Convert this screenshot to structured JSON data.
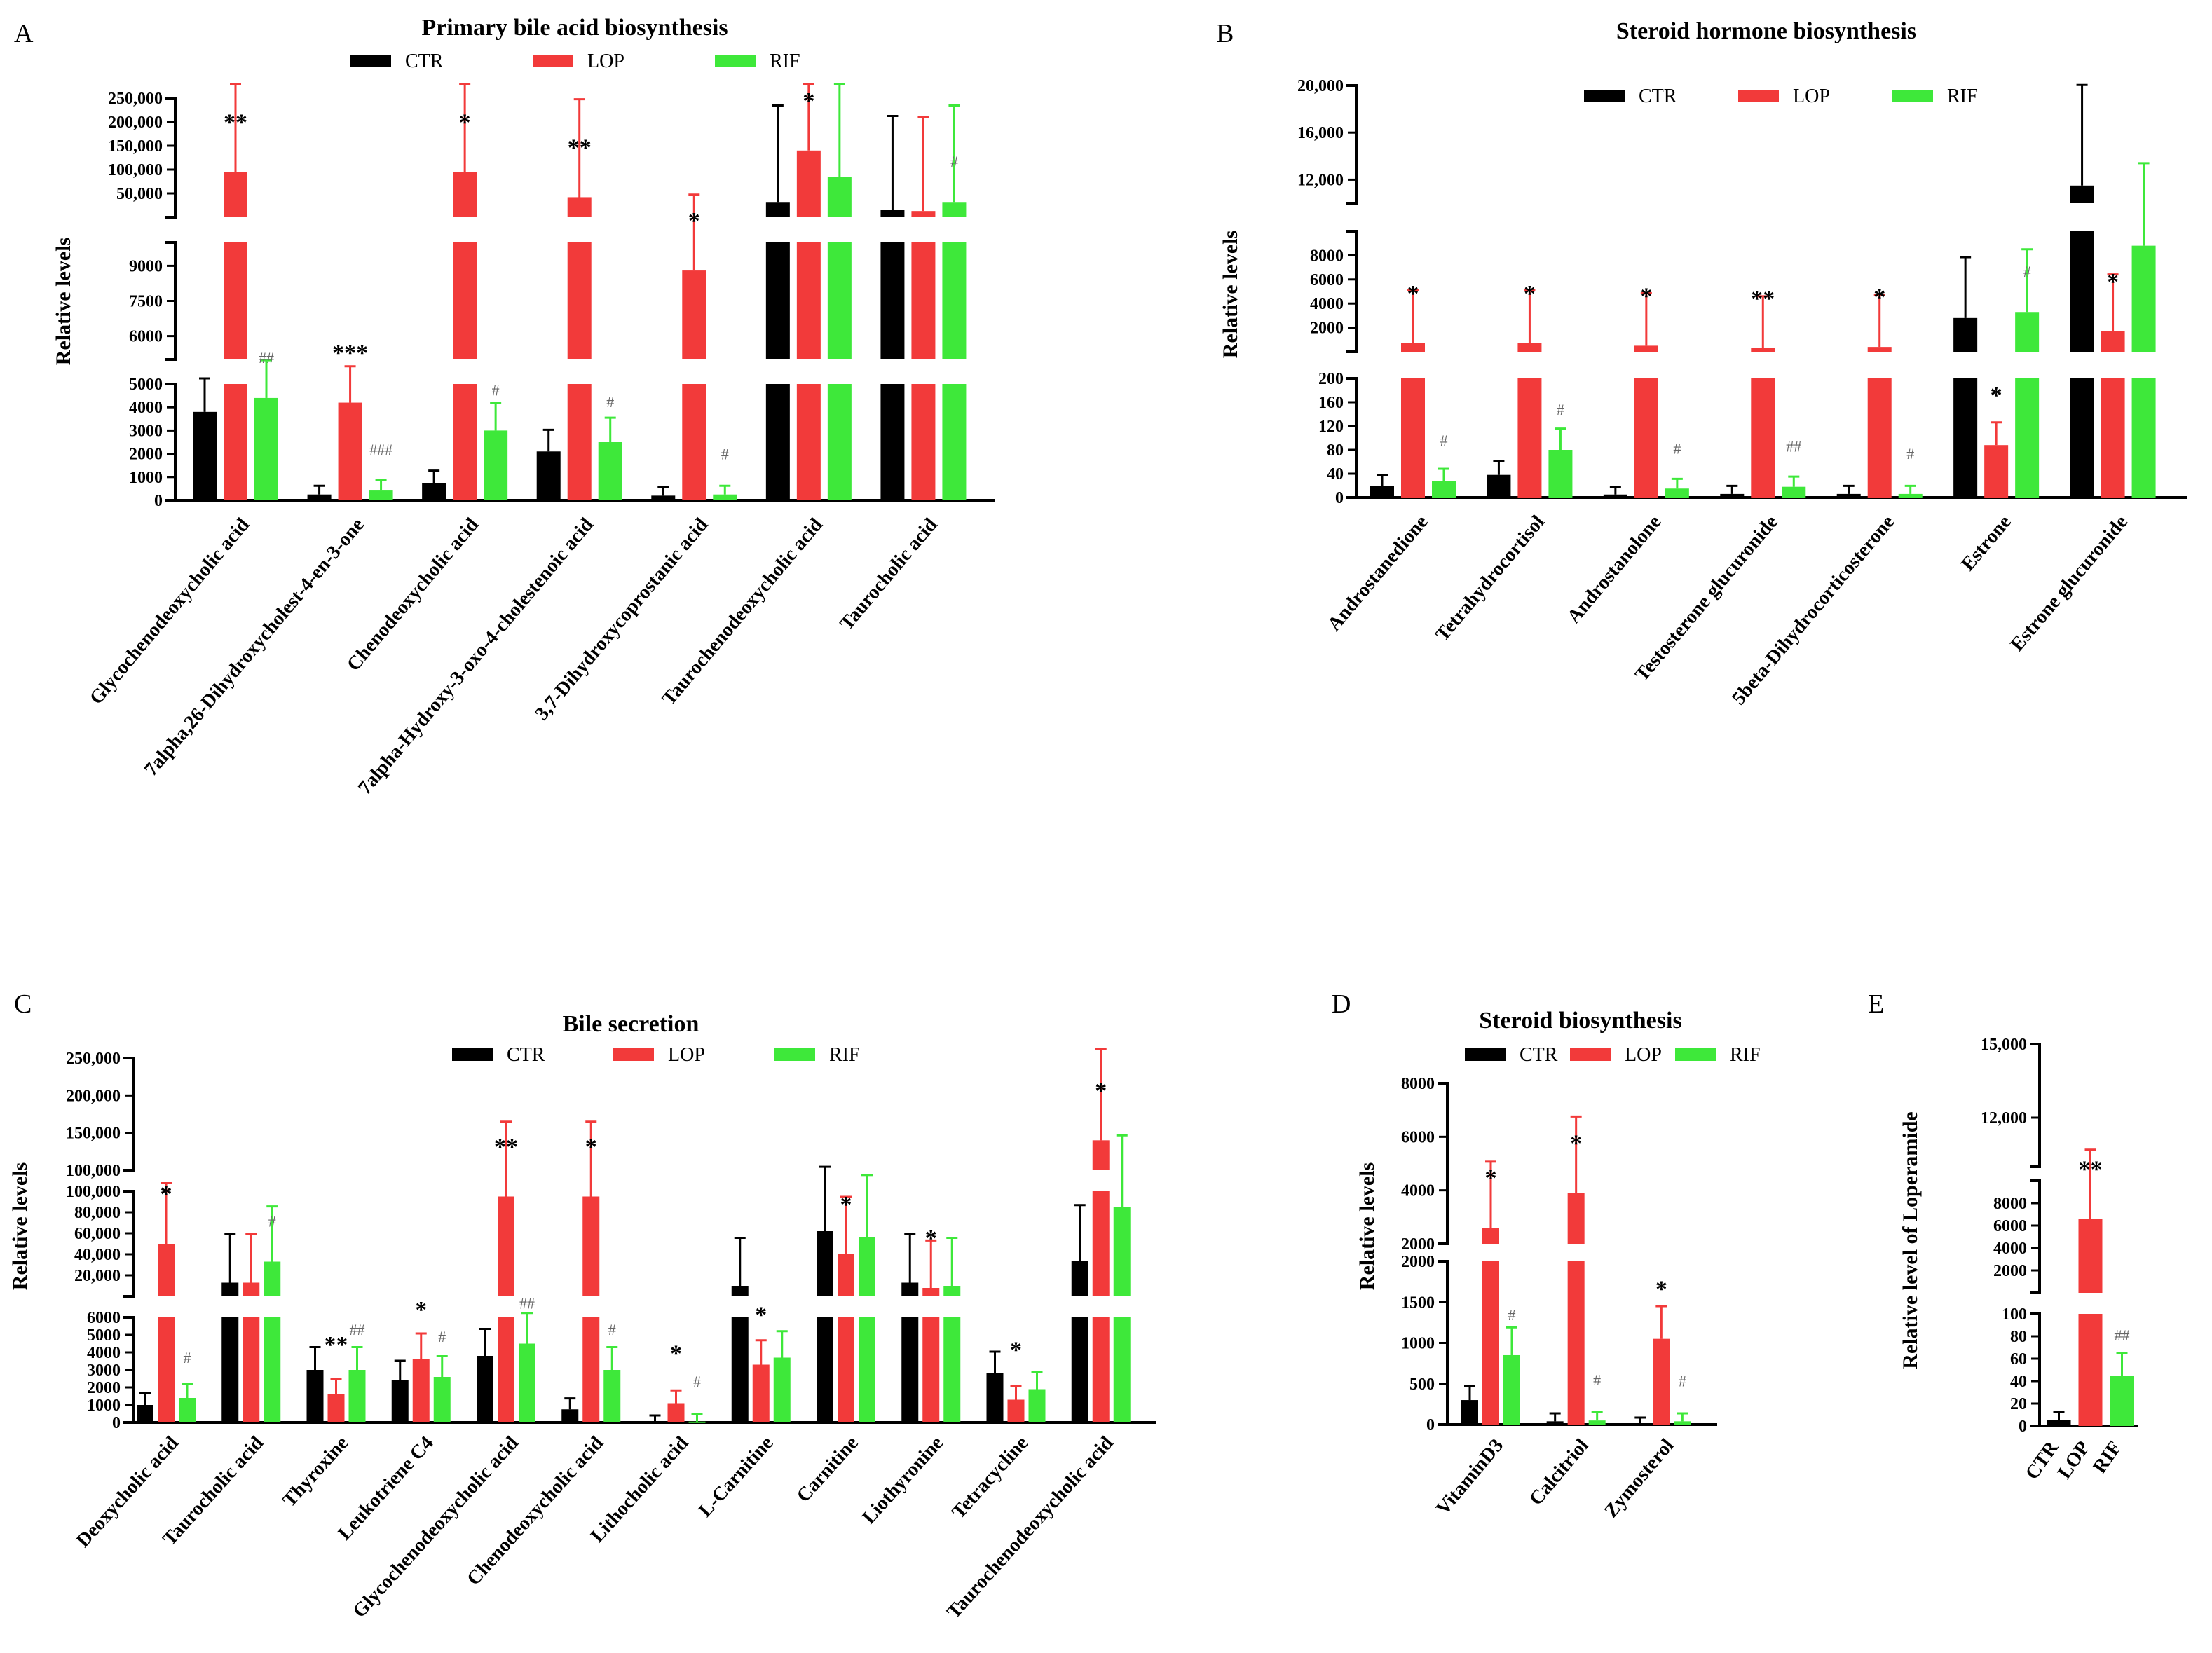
{
  "colors": {
    "CTR": "#000000",
    "LOP": "#f23a3a",
    "RIF": "#3ee83a"
  },
  "chart_data": [
    {
      "id": "A",
      "panel_label": "A",
      "type": "bar",
      "title": "Primary bile acid biosynthesis",
      "ylabel": "Relative levels",
      "legend": [
        "CTR",
        "LOP",
        "RIF"
      ],
      "y_ticks": {
        "top": [
          "250,000",
          "200,000",
          "150,000",
          "100,000",
          "50,000"
        ],
        "mid": [
          "9000",
          "7500",
          "6000"
        ],
        "bottom": [
          "5000",
          "4000",
          "3000",
          "2000",
          "1000",
          "0"
        ]
      },
      "categories": [
        "Glycochenodeoxycholic acid",
        "7alpha,26-Dihydroxycholest-4-en-3-one",
        "Chenodeoxycholic acid",
        "7alpha-Hydroxy-3-oxo-4-cholestenoic acid",
        "3,7-Dihydroxycoprostanic acid",
        "Taurochenodeoxycholic acid",
        "Taurocholic acid"
      ],
      "series": [
        {
          "name": "CTR",
          "values": [
            3800,
            250,
            750,
            2100,
            200,
            32000,
            15000
          ]
        },
        {
          "name": "LOP",
          "values": [
            95000,
            4200,
            95000,
            42000,
            8800,
            140000,
            13000
          ]
        },
        {
          "name": "RIF",
          "values": [
            4400,
            450,
            3000,
            2500,
            250,
            85000,
            32000
          ]
        }
      ],
      "significance": [
        "**",
        "***",
        "*",
        "**",
        "*",
        "*",
        ""
      ],
      "hash": [
        "##",
        "###",
        "#",
        "#",
        "#",
        "",
        "#"
      ]
    },
    {
      "id": "B",
      "panel_label": "B",
      "type": "bar",
      "title": "Steroid hormone biosynthesis",
      "ylabel": "Relative levels",
      "legend": [
        "CTR",
        "LOP",
        "RIF"
      ],
      "y_ticks": {
        "top": [
          "20,000",
          "16,000",
          "12,000"
        ],
        "mid": [
          "8000",
          "6000",
          "4000",
          "2000"
        ],
        "bottom": [
          "200",
          "160",
          "120",
          "80",
          "40",
          "0"
        ]
      },
      "categories": [
        "Androstanedione",
        "Tetrahydrocortisol",
        "Androstanolone",
        "Testosterone glucuronide",
        "5beta-Dihydrocorticosterone",
        "Estrone",
        "Estrone glucuronide"
      ],
      "series": [
        {
          "name": "CTR",
          "values": [
            20,
            38,
            5,
            6,
            6,
            2800,
            11500
          ]
        },
        {
          "name": "LOP",
          "values": [
            700,
            700,
            500,
            300,
            400,
            88,
            1700
          ]
        },
        {
          "name": "RIF",
          "values": [
            28,
            80,
            15,
            18,
            6,
            3300,
            8800
          ]
        }
      ],
      "significance": [
        "*",
        "*",
        "*",
        "**",
        "*",
        "*",
        "*"
      ],
      "hash": [
        "#",
        "#",
        "#",
        "##",
        "#",
        "#",
        ""
      ]
    },
    {
      "id": "C",
      "panel_label": "C",
      "type": "bar",
      "title": "Bile secretion",
      "ylabel": "Relative levels",
      "legend": [
        "CTR",
        "LOP",
        "RIF"
      ],
      "y_ticks": {
        "top": [
          "250,000",
          "200,000",
          "150,000",
          "100,000"
        ],
        "mid": [
          "100,000",
          "80,000",
          "60,000",
          "40,000",
          "20,000"
        ],
        "bottom": [
          "6000",
          "5000",
          "4000",
          "3000",
          "2000",
          "1000",
          "0"
        ]
      },
      "categories": [
        "Deoxycholic acid",
        "Taurocholic acid",
        "Thyroxine",
        "Leukotriene C4",
        "Glycochenodeoxycholic acid",
        "Chenodeoxycholic acid",
        "Lithocholic acid",
        "L-Carnitine",
        "Carnitine",
        "Liothyronine",
        "Tetracycline",
        "Taurochenodeoxycholic acid"
      ],
      "series": [
        {
          "name": "CTR",
          "values": [
            1000,
            13000,
            3000,
            2400,
            3800,
            750,
            0,
            10000,
            62000,
            13000,
            2800,
            34000
          ]
        },
        {
          "name": "LOP",
          "values": [
            50000,
            13000,
            1600,
            3600,
            95000,
            95000,
            1100,
            3300,
            40000,
            8000,
            1300,
            140000
          ]
        },
        {
          "name": "RIF",
          "values": [
            1400,
            33000,
            3000,
            2600,
            4500,
            3000,
            50,
            3700,
            56000,
            10000,
            1900,
            85000
          ]
        }
      ],
      "significance": [
        "*",
        "",
        "**",
        "*",
        "**",
        "*",
        "*",
        "*",
        "*",
        "*",
        "*",
        "*"
      ],
      "hash": [
        "#",
        "#",
        "##",
        "#",
        "##",
        "#",
        "#",
        "",
        "",
        "",
        "",
        ""
      ]
    },
    {
      "id": "D",
      "panel_label": "D",
      "type": "bar",
      "title": "Steroid biosynthesis",
      "ylabel": "Relative levels",
      "legend": [
        "CTR",
        "LOP",
        "RIF"
      ],
      "y_ticks": {
        "top": [
          "8000",
          "6000",
          "4000",
          "2000"
        ],
        "bottom": [
          "2000",
          "1500",
          "1000",
          "500",
          "0"
        ]
      },
      "categories": [
        "VitaminD3",
        "Calcitriol",
        "Zymosterol"
      ],
      "series": [
        {
          "name": "CTR",
          "values": [
            300,
            40,
            0
          ]
        },
        {
          "name": "LOP",
          "values": [
            2600,
            3900,
            1050
          ]
        },
        {
          "name": "RIF",
          "values": [
            850,
            50,
            40
          ]
        }
      ],
      "significance": [
        "*",
        "*",
        "*"
      ],
      "hash": [
        "#",
        "#",
        "#"
      ]
    },
    {
      "id": "E",
      "panel_label": "E",
      "type": "bar",
      "title": "",
      "ylabel": "Relative level of Loperamide",
      "y_ticks": {
        "top": [
          "15,000",
          "12,000"
        ],
        "mid": [
          "8000",
          "6000",
          "4000",
          "2000"
        ],
        "bottom": [
          "100",
          "80",
          "60",
          "40",
          "20",
          "0"
        ]
      },
      "categories": [
        "CTR",
        "LOP",
        "RIF"
      ],
      "values": [
        5,
        6600,
        45
      ],
      "significance": [
        "",
        "**",
        ""
      ],
      "hash": [
        "",
        "",
        "##"
      ]
    }
  ]
}
